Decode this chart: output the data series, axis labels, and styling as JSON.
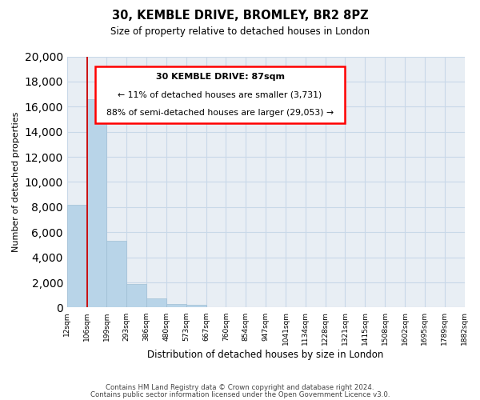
{
  "title": "30, KEMBLE DRIVE, BROMLEY, BR2 8PZ",
  "subtitle": "Size of property relative to detached houses in London",
  "xlabel": "Distribution of detached houses by size in London",
  "ylabel": "Number of detached properties",
  "bar_values": [
    8200,
    16600,
    5300,
    1850,
    750,
    270,
    190,
    0,
    0,
    0,
    0,
    0,
    0,
    0,
    0,
    0,
    0,
    0,
    0,
    0
  ],
  "categories": [
    "12sqm",
    "106sqm",
    "199sqm",
    "293sqm",
    "386sqm",
    "480sqm",
    "573sqm",
    "667sqm",
    "760sqm",
    "854sqm",
    "947sqm",
    "1041sqm",
    "1134sqm",
    "1228sqm",
    "1321sqm",
    "1415sqm",
    "1508sqm",
    "1602sqm",
    "1695sqm",
    "1789sqm",
    "1882sqm"
  ],
  "ylim": [
    0,
    20000
  ],
  "yticks": [
    0,
    2000,
    4000,
    6000,
    8000,
    10000,
    12000,
    14000,
    16000,
    18000,
    20000
  ],
  "bar_color": "#b8d4e8",
  "bar_edge_color": "#a0bfd4",
  "grid_color": "#c8d8e8",
  "bg_color": "#e8eef4",
  "annotation_title": "30 KEMBLE DRIVE: 87sqm",
  "annotation_line1": "← 11% of detached houses are smaller (3,731)",
  "annotation_line2": "88% of semi-detached houses are larger (29,053) →",
  "marker_color": "#cc0000",
  "footnote1": "Contains HM Land Registry data © Crown copyright and database right 2024.",
  "footnote2": "Contains public sector information licensed under the Open Government Licence v3.0."
}
